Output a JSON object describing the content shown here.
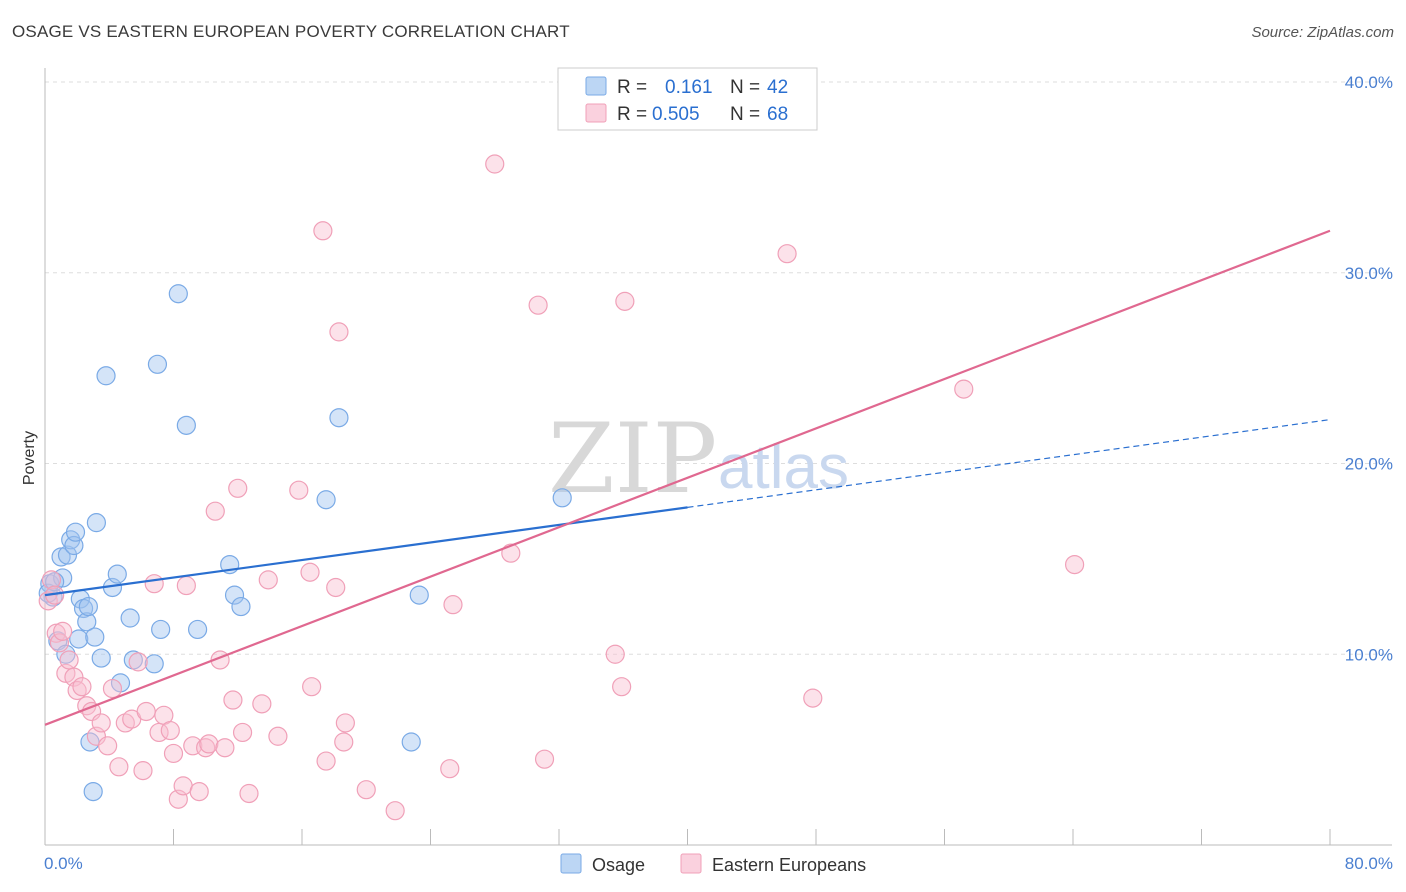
{
  "header": {
    "title": "OSAGE VS EASTERN EUROPEAN POVERTY CORRELATION CHART",
    "source": "Source: ZipAtlas.com"
  },
  "watermark": {
    "zip": "ZIP",
    "atlas": "atlas"
  },
  "legend": {
    "r_label": "R =",
    "n_label": "N =",
    "rows": [
      {
        "r": "0.161",
        "n": "42",
        "color": "#7aaae6"
      },
      {
        "r": "0.505",
        "n": "68",
        "color": "#f0a0b8"
      }
    ]
  },
  "bottom_legend": [
    "Osage",
    "Eastern Europeans"
  ],
  "chart_data": {
    "type": "scatter",
    "title": "OSAGE VS EASTERN EUROPEAN POVERTY CORRELATION CHART",
    "xlabel": "",
    "ylabel": "Poverty",
    "xlim": [
      0,
      80
    ],
    "ylim": [
      0,
      40
    ],
    "x_tick_labels": [
      "0.0%",
      "80.0%"
    ],
    "y_tick_labels": [
      "10.0%",
      "20.0%",
      "30.0%",
      "40.0%"
    ],
    "y_ticks": [
      10,
      20,
      30,
      40
    ],
    "grid": true,
    "legend_position": "top-center",
    "series": [
      {
        "name": "Osage",
        "color": "#7aaae6",
        "line_color": "#2a6fd0",
        "trend": {
          "x0": 0,
          "y0": 13.1,
          "x1": 40,
          "y1": 17.7,
          "dashed_to_x": 80,
          "dashed_to_y": 22.3
        },
        "points": [
          [
            0.3,
            13.7
          ],
          [
            0.5,
            13.0
          ],
          [
            0.8,
            10.7
          ],
          [
            1.0,
            15.1
          ],
          [
            1.1,
            14.0
          ],
          [
            1.3,
            10.0
          ],
          [
            1.4,
            15.2
          ],
          [
            1.6,
            16.0
          ],
          [
            1.8,
            15.7
          ],
          [
            1.9,
            16.4
          ],
          [
            2.1,
            10.8
          ],
          [
            2.2,
            12.9
          ],
          [
            2.4,
            12.4
          ],
          [
            2.6,
            11.7
          ],
          [
            2.7,
            12.5
          ],
          [
            3.1,
            10.9
          ],
          [
            3.2,
            16.9
          ],
          [
            3.5,
            9.8
          ],
          [
            3.8,
            24.6
          ],
          [
            4.2,
            13.5
          ],
          [
            4.5,
            14.2
          ],
          [
            4.7,
            8.5
          ],
          [
            5.3,
            11.9
          ],
          [
            5.5,
            9.7
          ],
          [
            6.8,
            9.5
          ],
          [
            7.0,
            25.2
          ],
          [
            7.2,
            11.3
          ],
          [
            8.3,
            28.9
          ],
          [
            8.8,
            22.0
          ],
          [
            9.5,
            11.3
          ],
          [
            11.5,
            14.7
          ],
          [
            11.8,
            13.1
          ],
          [
            12.2,
            12.5
          ],
          [
            17.5,
            18.1
          ],
          [
            18.3,
            22.4
          ],
          [
            23.3,
            13.1
          ],
          [
            32.2,
            18.2
          ],
          [
            3.0,
            2.8
          ],
          [
            2.8,
            5.4
          ],
          [
            22.8,
            5.4
          ],
          [
            0.2,
            13.2
          ],
          [
            0.6,
            13.8
          ]
        ]
      },
      {
        "name": "Eastern Europeans",
        "color": "#f0a0b8",
        "line_color": "#e06890",
        "trend": {
          "x0": 0,
          "y0": 6.3,
          "x1": 80,
          "y1": 32.2
        },
        "points": [
          [
            0.2,
            12.8
          ],
          [
            0.4,
            13.9
          ],
          [
            0.6,
            13.1
          ],
          [
            0.7,
            11.1
          ],
          [
            0.9,
            10.6
          ],
          [
            1.1,
            11.2
          ],
          [
            1.3,
            9.0
          ],
          [
            1.5,
            9.7
          ],
          [
            1.8,
            8.8
          ],
          [
            2.0,
            8.1
          ],
          [
            2.3,
            8.3
          ],
          [
            2.6,
            7.3
          ],
          [
            2.9,
            7.0
          ],
          [
            3.2,
            5.7
          ],
          [
            3.5,
            6.4
          ],
          [
            3.9,
            5.2
          ],
          [
            4.2,
            8.2
          ],
          [
            4.6,
            4.1
          ],
          [
            5.0,
            6.4
          ],
          [
            5.4,
            6.6
          ],
          [
            5.8,
            9.6
          ],
          [
            6.1,
            3.9
          ],
          [
            6.3,
            7.0
          ],
          [
            6.8,
            13.7
          ],
          [
            7.1,
            5.9
          ],
          [
            7.4,
            6.8
          ],
          [
            7.8,
            6.0
          ],
          [
            8.0,
            4.8
          ],
          [
            8.3,
            2.4
          ],
          [
            8.6,
            3.1
          ],
          [
            8.8,
            13.6
          ],
          [
            9.2,
            5.2
          ],
          [
            9.6,
            2.8
          ],
          [
            10.0,
            5.1
          ],
          [
            10.2,
            5.3
          ],
          [
            10.6,
            17.5
          ],
          [
            10.9,
            9.7
          ],
          [
            11.2,
            5.1
          ],
          [
            11.7,
            7.6
          ],
          [
            12.0,
            18.7
          ],
          [
            12.3,
            5.9
          ],
          [
            12.7,
            2.7
          ],
          [
            13.5,
            7.4
          ],
          [
            13.9,
            13.9
          ],
          [
            14.5,
            5.7
          ],
          [
            15.8,
            18.6
          ],
          [
            16.5,
            14.3
          ],
          [
            16.6,
            8.3
          ],
          [
            17.5,
            4.4
          ],
          [
            18.1,
            13.5
          ],
          [
            18.6,
            5.4
          ],
          [
            18.7,
            6.4
          ],
          [
            17.3,
            32.2
          ],
          [
            18.3,
            26.9
          ],
          [
            20.0,
            2.9
          ],
          [
            21.8,
            1.8
          ],
          [
            25.2,
            4.0
          ],
          [
            25.4,
            12.6
          ],
          [
            28.0,
            35.7
          ],
          [
            29.0,
            15.3
          ],
          [
            30.7,
            28.3
          ],
          [
            31.1,
            4.5
          ],
          [
            35.5,
            10.0
          ],
          [
            35.9,
            8.3
          ],
          [
            36.1,
            28.5
          ],
          [
            46.2,
            31.0
          ],
          [
            47.8,
            7.7
          ],
          [
            64.1,
            14.7
          ]
        ]
      }
    ],
    "extra_points_note": "",
    "extra": {
      "pink_top": [
        [
          45.7,
          39.8
        ],
        [
          57.2,
          23.9
        ]
      ]
    }
  }
}
